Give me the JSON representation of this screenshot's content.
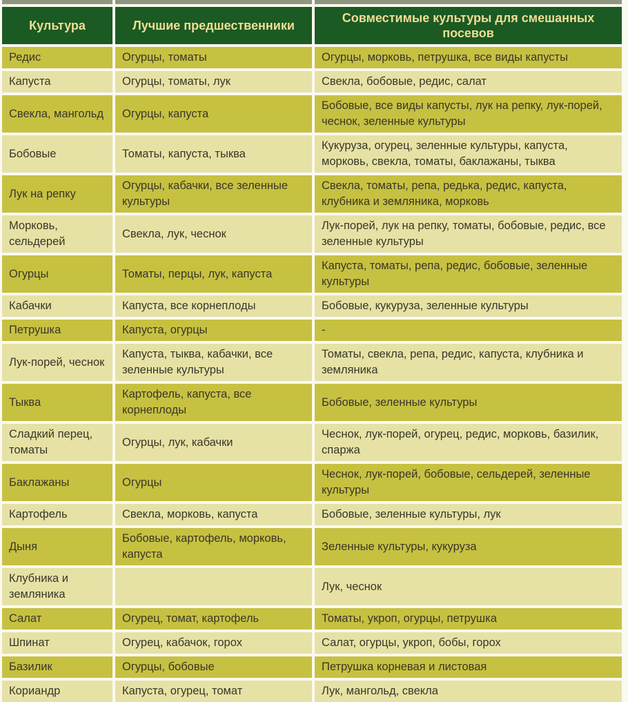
{
  "colors": {
    "page_bg": "#fbf9f0",
    "header_bg": "#1b5a22",
    "header_text": "#efdd96",
    "row_dark": "#c7c142",
    "row_light": "#e6e2a5",
    "cell_text": "#3a3729",
    "top_strip": "#8e9680"
  },
  "table": {
    "columns": [
      "Культура",
      "Лучшие предшественники",
      "Совместимые культуры для смешанных посевов"
    ],
    "rows": [
      {
        "crop": "Редис",
        "predecessors": "Огурцы, томаты",
        "companions": "Огурцы, морковь, петрушка, все виды капусты"
      },
      {
        "crop": "Капуста",
        "predecessors": "Огурцы, томаты, лук",
        "companions": "Свекла, бобовые, редис, салат"
      },
      {
        "crop": "Свекла, мангольд",
        "predecessors": "Огурцы, капуста",
        "companions": "Бобовые, все виды капусты, лук на репку, лук-порей, чеснок, зеленные культуры"
      },
      {
        "crop": "Бобовые",
        "predecessors": "Томаты, капуста, тыква",
        "companions": "Кукуруза, огурец, зеленные культуры, капуста, морковь, свекла, томаты, баклажаны, тыква"
      },
      {
        "crop": "Лук на репку",
        "predecessors": "Огурцы, кабачки, все зеленные культуры",
        "companions": "Свекла, томаты, репа, редька, редис, капуста, клубника и земляника, морковь"
      },
      {
        "crop": "Морковь, сельдерей",
        "predecessors": "Свекла, лук, чеснок",
        "companions": "Лук-порей, лук на репку, томаты, бобовые, редис, все зеленные культуры"
      },
      {
        "crop": "Огурцы",
        "predecessors": "Томаты, перцы, лук, капуста",
        "companions": "Капуста, томаты, репа, редис, бобовые, зеленные культуры"
      },
      {
        "crop": "Кабачки",
        "predecessors": "Капуста, все корнеплоды",
        "companions": "Бобовые, кукуруза, зеленные культуры"
      },
      {
        "crop": "Петрушка",
        "predecessors": "Капуста, огурцы",
        "companions": "-"
      },
      {
        "crop": "Лук-порей, чеснок",
        "predecessors": "Капуста, тыква, кабачки, все зеленные культуры",
        "companions": "Томаты, свекла, репа, редис, капуста, клубника и земляника"
      },
      {
        "crop": "Тыква",
        "predecessors": "Картофель, капуста, все корнеплоды",
        "companions": "Бобовые, зеленные культуры"
      },
      {
        "crop": "Сладкий перец, томаты",
        "predecessors": "Огурцы, лук, кабачки",
        "companions": "Чеснок, лук-порей, огурец, редис, морковь, базилик, спаржа"
      },
      {
        "crop": "Баклажаны",
        "predecessors": "Огурцы",
        "companions": "Чеснок, лук-порей, бобовые, сельдерей, зеленные культуры"
      },
      {
        "crop": "Картофель",
        "predecessors": "Свекла, морковь, капуста",
        "companions": "Бобовые, зеленные культуры, лук"
      },
      {
        "crop": "Дыня",
        "predecessors": "Бобовые, картофель, морковь, капуста",
        "companions": "Зеленные культуры, кукуруза"
      },
      {
        "crop": "Клубника и земляника",
        "predecessors": "",
        "companions": "Лук, чеснок"
      },
      {
        "crop": "Салат",
        "predecessors": "Огурец, томат, картофель",
        "companions": "Томаты, укроп, огурцы, петрушка"
      },
      {
        "crop": "Шпинат",
        "predecessors": "Огурец, кабачок, горох",
        "companions": "Салат, огурцы, укроп, бобы, горох"
      },
      {
        "crop": "Базилик",
        "predecessors": "Огурцы, бобовые",
        "companions": "Петрушка корневая и листовая"
      },
      {
        "crop": "Кориандр",
        "predecessors": "Капуста, огурец, томат",
        "companions": "Лук, мангольд, свекла"
      }
    ]
  }
}
